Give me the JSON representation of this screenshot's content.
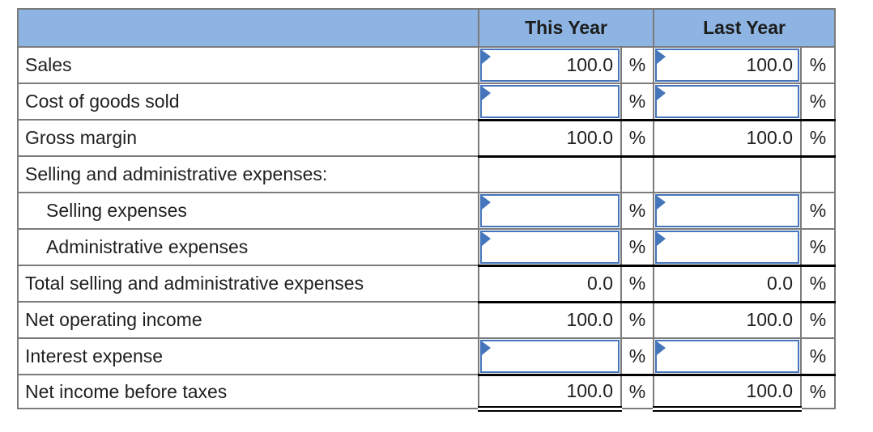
{
  "header": {
    "col_this_year": "This Year",
    "col_last_year": "Last Year"
  },
  "percent_symbol": "%",
  "colors": {
    "header_bg": "#8db4e2",
    "grid_border": "#7b7b7b",
    "input_border": "#4575bb",
    "accounting_line": "#000000",
    "text": "#1f1f1f"
  },
  "rows": [
    {
      "label": "Sales",
      "type": "input",
      "this_year": "100.0",
      "last_year": "100.0"
    },
    {
      "label": "Cost of goods sold",
      "type": "input",
      "this_year": "",
      "last_year": ""
    },
    {
      "label": "Gross margin",
      "type": "static",
      "this_year": "100.0",
      "last_year": "100.0"
    },
    {
      "label": "Selling and administrative expenses:",
      "type": "heading",
      "this_year": "",
      "last_year": ""
    },
    {
      "label": "Selling expenses",
      "type": "input",
      "this_year": "",
      "last_year": ""
    },
    {
      "label": "Administrative expenses",
      "type": "input",
      "this_year": "",
      "last_year": ""
    },
    {
      "label": "Total selling and administrative expenses",
      "type": "static",
      "this_year": "0.0",
      "last_year": "0.0"
    },
    {
      "label": "Net operating income",
      "type": "static",
      "this_year": "100.0",
      "last_year": "100.0"
    },
    {
      "label": "Interest expense",
      "type": "input",
      "this_year": "",
      "last_year": ""
    },
    {
      "label": "Net income before taxes",
      "type": "static",
      "this_year": "100.0",
      "last_year": "100.0"
    }
  ]
}
